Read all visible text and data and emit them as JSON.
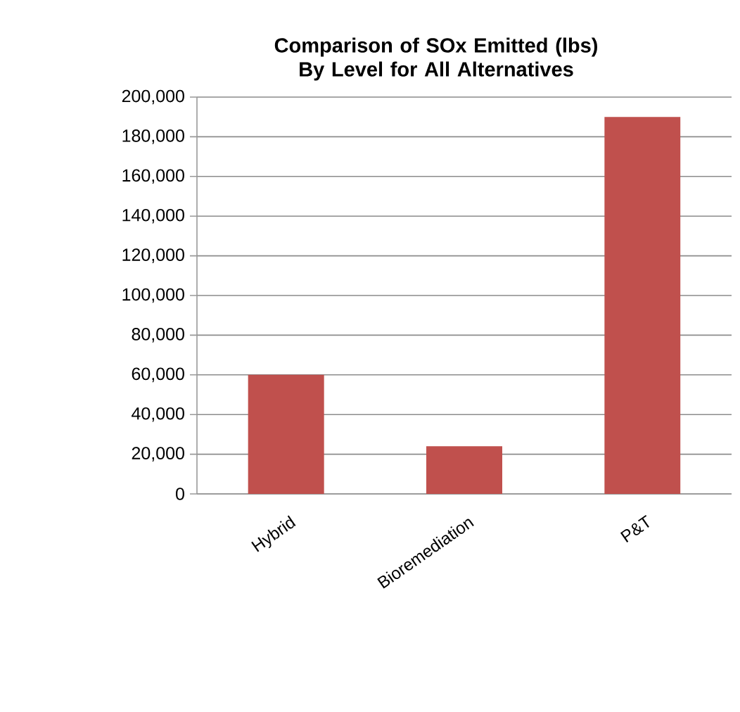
{
  "chart_data": {
    "type": "bar",
    "title": "Comparison of SOx Emitted (lbs) By Level for All Alternatives",
    "categories": [
      "Hybrid",
      "Bioremediation",
      "P&T"
    ],
    "values": [
      60000,
      24000,
      190000
    ],
    "color": "#c0504d",
    "ylim": [
      0,
      200000
    ],
    "yticks": [
      0,
      {
        "value": 20000,
        "label": "20,000"
      },
      {
        "value": 40000,
        "label": "40,000"
      },
      {
        "value": 60000,
        "label": "60,000"
      },
      {
        "value": 80000,
        "label": "80,000"
      },
      {
        "value": 100000,
        "label": "100,000"
      },
      {
        "value": 120000,
        "label": "120,000"
      },
      {
        "value": 140000,
        "label": "140,000"
      },
      {
        "value": 160000,
        "label": "160,000"
      },
      {
        "value": 180000,
        "label": "180,000"
      },
      {
        "value": 200000,
        "label": "200,000"
      }
    ],
    "grid": "y"
  }
}
